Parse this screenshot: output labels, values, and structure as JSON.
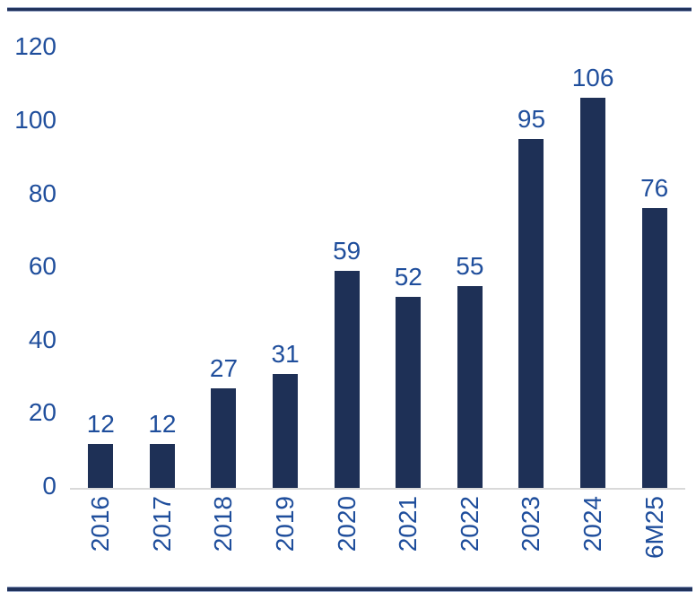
{
  "chart_data": {
    "type": "bar",
    "categories": [
      "2016",
      "2017",
      "2018",
      "2019",
      "2020",
      "2021",
      "2022",
      "2023",
      "2024",
      "6M25"
    ],
    "values": [
      12,
      12,
      27,
      31,
      59,
      52,
      55,
      95,
      106,
      76
    ],
    "title": "",
    "xlabel": "",
    "ylabel": "",
    "ylim": [
      0,
      120
    ],
    "yticks": [
      0,
      20,
      40,
      60,
      80,
      100,
      120
    ],
    "grid": false,
    "legend": false,
    "data_labels_shown": true,
    "x_labels_rotated_degrees": 90,
    "colors": {
      "bar_fill": "#1e3056",
      "label_text": "#1f4e9c",
      "axis_tick_text": "#1f4e9c",
      "x_axis_line": "#d9d9d9",
      "border_rule": "#20325c",
      "background": "#ffffff"
    }
  }
}
